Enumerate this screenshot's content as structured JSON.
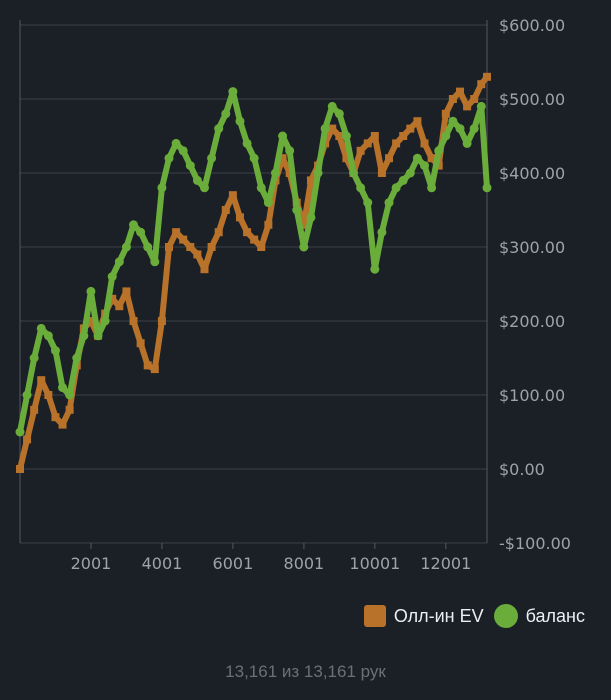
{
  "chart_data": {
    "type": "line",
    "xlim": [
      1,
      13161
    ],
    "ylim": [
      -100,
      600
    ],
    "x_ticks": [
      2001,
      4001,
      6001,
      8001,
      10001,
      12001
    ],
    "y_ticks": [
      600,
      500,
      400,
      300,
      200,
      100,
      0,
      -100
    ],
    "y_tick_labels": [
      "$600.00",
      "$500.00",
      "$400.00",
      "$300.00",
      "$200.00",
      "$100.00",
      "$0.00",
      "-$100.00"
    ],
    "grid": "horizontal",
    "legend_position": "bottom-right",
    "series": [
      {
        "name": "Олл-ин EV",
        "color": "#b8722a",
        "marker": "square",
        "x": [
          1,
          200,
          400,
          600,
          800,
          1000,
          1200,
          1400,
          1600,
          1800,
          2000,
          2200,
          2400,
          2600,
          2800,
          3000,
          3200,
          3400,
          3600,
          3800,
          4000,
          4200,
          4400,
          4600,
          4800,
          5000,
          5200,
          5400,
          5600,
          5800,
          6000,
          6200,
          6400,
          6600,
          6800,
          7000,
          7200,
          7400,
          7600,
          7800,
          8000,
          8200,
          8400,
          8600,
          8800,
          9000,
          9200,
          9400,
          9600,
          9800,
          10000,
          10200,
          10400,
          10600,
          10800,
          11000,
          11200,
          11400,
          11600,
          11800,
          12000,
          12200,
          12400,
          12600,
          12800,
          13000,
          13161
        ],
        "y": [
          0,
          40,
          80,
          120,
          100,
          70,
          60,
          80,
          140,
          190,
          200,
          180,
          210,
          230,
          220,
          240,
          200,
          170,
          140,
          135,
          200,
          300,
          320,
          310,
          300,
          290,
          270,
          300,
          320,
          350,
          370,
          340,
          320,
          310,
          300,
          330,
          390,
          420,
          400,
          360,
          330,
          390,
          410,
          440,
          460,
          450,
          420,
          400,
          430,
          440,
          450,
          400,
          420,
          440,
          450,
          460,
          470,
          440,
          420,
          410,
          480,
          500,
          510,
          490,
          500,
          520,
          530
        ]
      },
      {
        "name": "баланс",
        "color": "#6bad3a",
        "marker": "circle",
        "x": [
          1,
          200,
          400,
          600,
          800,
          1000,
          1200,
          1400,
          1600,
          1800,
          2000,
          2200,
          2400,
          2600,
          2800,
          3000,
          3200,
          3400,
          3600,
          3800,
          4000,
          4200,
          4400,
          4600,
          4800,
          5000,
          5200,
          5400,
          5600,
          5800,
          6000,
          6200,
          6400,
          6600,
          6800,
          7000,
          7200,
          7400,
          7600,
          7800,
          8000,
          8200,
          8400,
          8600,
          8800,
          9000,
          9200,
          9400,
          9600,
          9800,
          10000,
          10200,
          10400,
          10600,
          10800,
          11000,
          11200,
          11400,
          11600,
          11800,
          12000,
          12200,
          12400,
          12600,
          12800,
          13000,
          13161
        ],
        "y": [
          50,
          100,
          150,
          190,
          180,
          160,
          110,
          100,
          150,
          180,
          240,
          180,
          200,
          260,
          280,
          300,
          330,
          320,
          300,
          280,
          380,
          420,
          440,
          430,
          410,
          390,
          380,
          420,
          460,
          480,
          510,
          470,
          440,
          420,
          380,
          360,
          400,
          450,
          430,
          350,
          300,
          340,
          400,
          460,
          490,
          480,
          450,
          400,
          380,
          360,
          270,
          320,
          360,
          380,
          390,
          400,
          420,
          410,
          380,
          430,
          450,
          470,
          460,
          440,
          460,
          490,
          380
        ]
      }
    ]
  },
  "footer": {
    "count_label": "13,161 из 13,161 рук"
  }
}
